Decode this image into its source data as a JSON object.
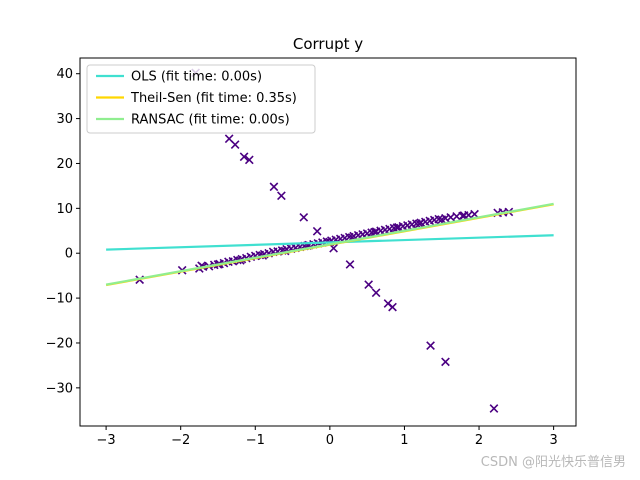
{
  "chart_data": {
    "type": "scatter",
    "title": "Corrupt y",
    "xlim": [
      -3.35,
      3.3
    ],
    "ylim": [
      -38.5,
      43.5
    ],
    "xticks": [
      -3,
      -2,
      -1,
      0,
      1,
      2,
      3
    ],
    "yticks": [
      -30,
      -20,
      -10,
      0,
      10,
      20,
      30,
      40
    ],
    "grid": false,
    "legend_position": "top-left",
    "marker": "x",
    "marker_color": "#4b0082",
    "series": [
      {
        "points": [
          [
            -2.55,
            -5.9
          ],
          [
            -1.98,
            -3.8
          ],
          [
            -1.75,
            -3.4
          ],
          [
            -1.7,
            -3.0
          ],
          [
            -1.62,
            -2.9
          ],
          [
            -1.55,
            -2.6
          ],
          [
            -1.48,
            -2.4
          ],
          [
            -1.42,
            -2.2
          ],
          [
            -1.36,
            -1.9
          ],
          [
            -1.3,
            -1.8
          ],
          [
            -1.24,
            -1.5
          ],
          [
            -1.18,
            -1.3
          ],
          [
            -1.12,
            -1.1
          ],
          [
            -1.06,
            -0.8
          ],
          [
            -1.0,
            -0.6
          ],
          [
            -0.94,
            -0.4
          ],
          [
            -0.88,
            -0.2
          ],
          [
            -0.82,
            0.0
          ],
          [
            -0.76,
            0.3
          ],
          [
            -0.7,
            0.4
          ],
          [
            -0.64,
            0.6
          ],
          [
            -0.58,
            0.9
          ],
          [
            -0.52,
            1.0
          ],
          [
            -0.46,
            1.2
          ],
          [
            -0.4,
            1.4
          ],
          [
            -0.34,
            1.6
          ],
          [
            -0.28,
            1.8
          ],
          [
            -0.22,
            2.0
          ],
          [
            -0.16,
            2.2
          ],
          [
            -0.1,
            2.4
          ],
          [
            -0.04,
            2.6
          ],
          [
            0.02,
            2.8
          ],
          [
            0.08,
            3.0
          ],
          [
            0.14,
            3.2
          ],
          [
            0.2,
            3.4
          ],
          [
            0.26,
            3.6
          ],
          [
            0.32,
            3.8
          ],
          [
            0.38,
            4.0
          ],
          [
            0.44,
            4.2
          ],
          [
            0.5,
            4.4
          ],
          [
            0.56,
            4.6
          ],
          [
            0.62,
            4.8
          ],
          [
            0.68,
            5.0
          ],
          [
            0.74,
            5.2
          ],
          [
            0.8,
            5.4
          ],
          [
            0.86,
            5.6
          ],
          [
            0.92,
            5.8
          ],
          [
            0.98,
            6.0
          ],
          [
            1.04,
            6.2
          ],
          [
            1.1,
            6.4
          ],
          [
            1.16,
            6.6
          ],
          [
            1.22,
            6.8
          ],
          [
            1.28,
            7.0
          ],
          [
            1.34,
            7.2
          ],
          [
            1.4,
            7.4
          ],
          [
            1.46,
            7.6
          ],
          [
            1.55,
            7.8
          ],
          [
            1.62,
            8.0
          ],
          [
            1.7,
            8.2
          ],
          [
            1.78,
            8.3
          ],
          [
            1.86,
            8.5
          ],
          [
            1.94,
            8.7
          ],
          [
            2.25,
            9.0
          ],
          [
            2.32,
            9.1
          ],
          [
            2.4,
            9.2
          ],
          [
            -1.72,
            -2.8
          ],
          [
            -1.5,
            -2.5
          ],
          [
            -1.2,
            -1.6
          ],
          [
            -0.9,
            -0.5
          ],
          [
            -0.6,
            0.5
          ],
          [
            -0.3,
            1.7
          ],
          [
            0.0,
            2.5
          ],
          [
            0.3,
            3.5
          ],
          [
            0.6,
            4.7
          ],
          [
            0.9,
            5.7
          ],
          [
            1.2,
            6.6
          ],
          [
            1.5,
            7.5
          ],
          [
            1.8,
            8.4
          ],
          [
            -1.8,
            40.2
          ],
          [
            -1.35,
            25.5
          ],
          [
            -1.27,
            24.2
          ],
          [
            -1.15,
            21.5
          ],
          [
            -1.08,
            20.8
          ],
          [
            -0.75,
            14.8
          ],
          [
            -0.65,
            12.8
          ],
          [
            -0.35,
            8.0
          ],
          [
            -0.17,
            4.9
          ],
          [
            0.05,
            1.1
          ],
          [
            0.27,
            -2.5
          ],
          [
            0.52,
            -7.0
          ],
          [
            0.62,
            -8.8
          ],
          [
            0.78,
            -11.2
          ],
          [
            0.84,
            -12.0
          ],
          [
            1.35,
            -20.6
          ],
          [
            1.55,
            -24.2
          ],
          [
            2.2,
            -34.6
          ]
        ]
      }
    ],
    "lines": [
      {
        "name": "OLS (fit time: 0.00s)",
        "color": "#40e0d0",
        "x": [
          -3,
          3
        ],
        "y": [
          0.8,
          4.0
        ]
      },
      {
        "name": "Theil-Sen (fit time: 0.35s)",
        "color": "#ffd700",
        "x": [
          -3,
          3
        ],
        "y": [
          -7.1,
          10.9
        ]
      },
      {
        "name": "RANSAC (fit time: 0.00s)",
        "color": "#90ee90",
        "x": [
          -3,
          3
        ],
        "y": [
          -7.0,
          11.0
        ]
      }
    ]
  },
  "watermark": "CSDN @阳光快乐普信男"
}
